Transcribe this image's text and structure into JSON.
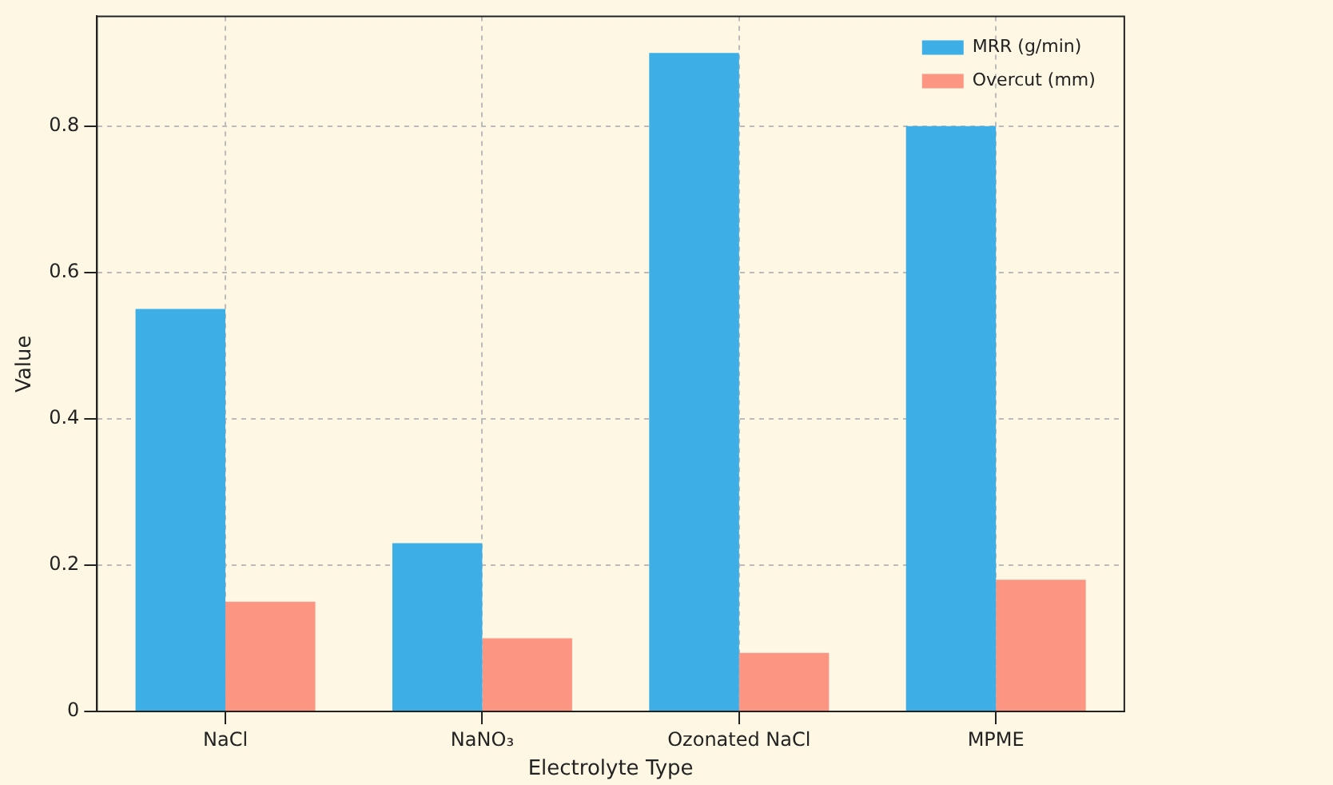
{
  "chart_data": {
    "type": "bar",
    "xlabel": "Electrolyte Type",
    "ylabel": "Value",
    "categories": [
      "NaCl",
      "NaNO₃",
      "Ozonated NaCl",
      "MPME"
    ],
    "series": [
      {
        "name": "MRR (g/min)",
        "color": "#3daee6",
        "values": [
          0.55,
          0.23,
          0.9,
          0.8
        ]
      },
      {
        "name": "Overcut (mm)",
        "color": "#fc9582",
        "values": [
          0.15,
          0.1,
          0.08,
          0.18
        ]
      }
    ],
    "ylim": [
      0,
      0.95
    ],
    "yticks": [
      0,
      0.2,
      0.4,
      0.6,
      0.8
    ],
    "grid": true,
    "legend": "top right"
  }
}
